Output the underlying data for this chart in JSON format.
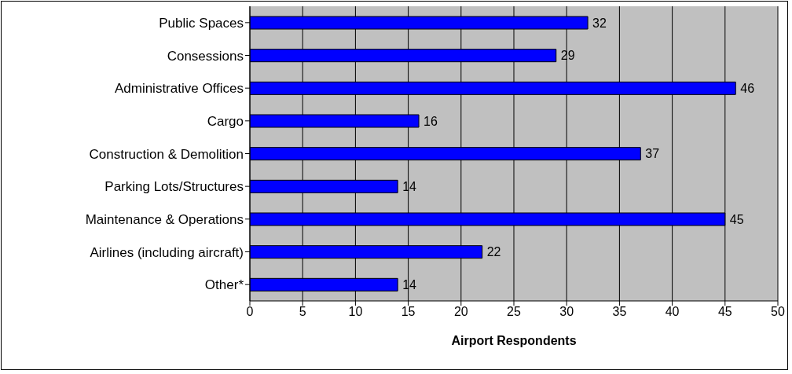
{
  "chart_data": {
    "type": "bar",
    "orientation": "horizontal",
    "xlabel": "Airport Respondents",
    "categories": [
      "Public Spaces",
      "Consessions",
      "Administrative Offices",
      "Cargo",
      "Construction & Demolition",
      "Parking Lots/Structures",
      "Maintenance & Operations",
      "Airlines (including aircraft)",
      "Other*"
    ],
    "values": [
      32,
      29,
      46,
      16,
      37,
      14,
      45,
      22,
      14
    ],
    "color": "#0000ff",
    "xlim": [
      0,
      50
    ],
    "xticks": [
      0,
      5,
      10,
      15,
      20,
      25,
      30,
      35,
      40,
      45,
      50
    ],
    "grid": "x",
    "data_labels": true,
    "legend": false
  }
}
